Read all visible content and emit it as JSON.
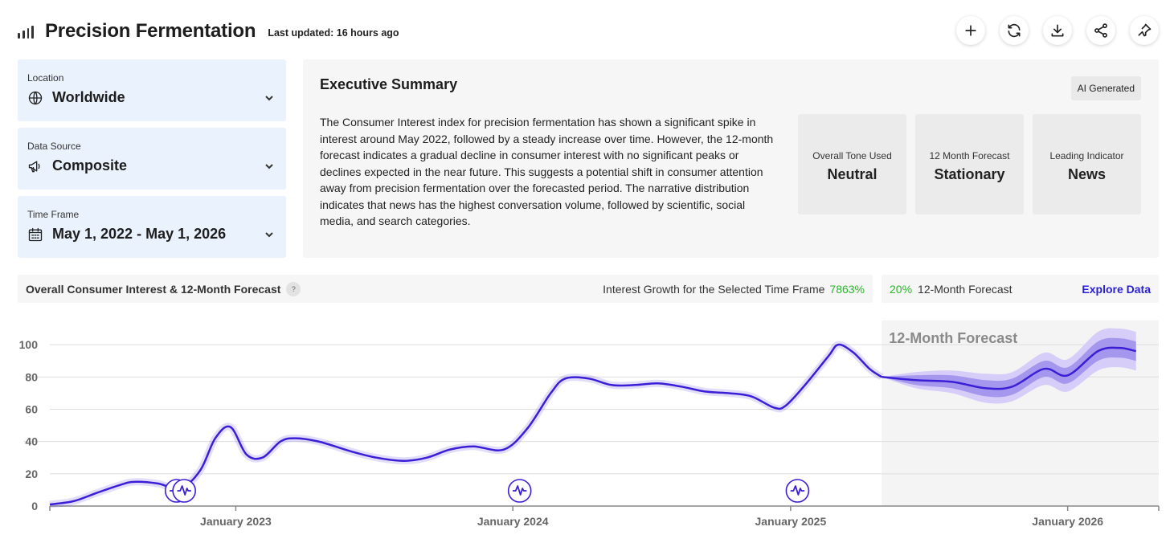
{
  "header": {
    "title": "Precision Fermentation",
    "updated": "Last updated: 16 hours ago",
    "actions": [
      {
        "name": "add-button",
        "icon": "plus-icon"
      },
      {
        "name": "refresh-button",
        "icon": "refresh-icon"
      },
      {
        "name": "download-button",
        "icon": "download-icon"
      },
      {
        "name": "share-button",
        "icon": "share-icon"
      },
      {
        "name": "pin-button",
        "icon": "pin-icon"
      }
    ]
  },
  "filters": {
    "location": {
      "label": "Location",
      "value": "Worldwide",
      "icon": "globe-icon"
    },
    "source": {
      "label": "Data Source",
      "value": "Composite",
      "icon": "megaphone-icon"
    },
    "timeframe": {
      "label": "Time Frame",
      "value": "May 1, 2022 - May 1, 2026",
      "icon": "calendar-icon"
    }
  },
  "summary": {
    "title": "Executive Summary",
    "badge": "AI Generated",
    "text": "The Consumer Interest index for precision fermentation has shown a significant spike in interest around May 2022, followed by a steady increase over time. However, the 12-month forecast indicates a gradual decline in consumer interest with no significant peaks or declines expected in the near future. This suggests a potential shift in consumer attention away from precision fermentation over the forecasted period. The narrative distribution indicates that news has the highest conversation volume, followed by scientific, social media, and search categories.",
    "stats": [
      {
        "label": "Overall Tone Used",
        "value": "Neutral"
      },
      {
        "label": "12 Month Forecast",
        "value": "Stationary"
      },
      {
        "label": "Leading Indicator",
        "value": "News"
      }
    ]
  },
  "chart_header": {
    "title": "Overall Consumer Interest & 12-Month Forecast",
    "help": "?",
    "growth_label": "Interest Growth for the Selected Time Frame",
    "growth_value": "7863%",
    "forecast_pct": "20%",
    "forecast_label": "12-Month Forecast",
    "explore": "Explore Data"
  },
  "colors": {
    "line": "#3a1fd6",
    "band_outer": "#d6cdf8",
    "band_inner": "#a597ee",
    "growth": "#2bb52b",
    "link": "#2a1fd6"
  },
  "chart_data": {
    "type": "line",
    "title": "",
    "forecast_label": "12-Month Forecast",
    "forecast_start": "2025-05-01",
    "x_range": [
      "2022-05-01",
      "2026-05-01"
    ],
    "ylim": [
      0,
      110
    ],
    "yticks": [
      0,
      20,
      40,
      60,
      80,
      100
    ],
    "xticks": [
      "2023-01-01",
      "2024-01-01",
      "2025-01-01",
      "2026-01-01"
    ],
    "xtick_labels": [
      "January 2023",
      "January 2024",
      "January 2025",
      "January 2026"
    ],
    "grid": "horizontal",
    "series": [
      {
        "name": "",
        "points": [
          [
            "2022-05-01",
            1
          ],
          [
            "2022-06-01",
            3
          ],
          [
            "2022-07-01",
            8
          ],
          [
            "2022-08-01",
            13
          ],
          [
            "2022-08-20",
            15
          ],
          [
            "2022-09-20",
            14
          ],
          [
            "2022-10-20",
            11
          ],
          [
            "2022-11-15",
            22
          ],
          [
            "2022-12-05",
            42
          ],
          [
            "2022-12-25",
            49
          ],
          [
            "2023-01-15",
            32
          ],
          [
            "2023-02-05",
            30
          ],
          [
            "2023-03-01",
            40
          ],
          [
            "2023-03-20",
            42
          ],
          [
            "2023-04-20",
            40
          ],
          [
            "2023-06-01",
            34
          ],
          [
            "2023-07-05",
            30
          ],
          [
            "2023-08-10",
            28
          ],
          [
            "2023-09-10",
            30
          ],
          [
            "2023-10-10",
            35
          ],
          [
            "2023-11-10",
            37
          ],
          [
            "2023-12-20",
            35
          ],
          [
            "2024-01-20",
            48
          ],
          [
            "2024-02-20",
            70
          ],
          [
            "2024-03-10",
            79
          ],
          [
            "2024-04-10",
            79
          ],
          [
            "2024-05-10",
            75
          ],
          [
            "2024-06-10",
            75
          ],
          [
            "2024-07-10",
            76
          ],
          [
            "2024-08-10",
            74
          ],
          [
            "2024-09-10",
            71
          ],
          [
            "2024-10-10",
            70
          ],
          [
            "2024-11-10",
            68
          ],
          [
            "2024-12-10",
            61
          ],
          [
            "2024-12-25",
            62
          ],
          [
            "2025-01-20",
            75
          ],
          [
            "2025-02-20",
            93
          ],
          [
            "2025-03-05",
            100
          ],
          [
            "2025-03-25",
            95
          ],
          [
            "2025-04-15",
            85
          ],
          [
            "2025-05-01",
            80
          ]
        ]
      },
      {
        "name": "",
        "forecast": true,
        "points": [
          [
            "2025-05-01",
            80,
            0,
            0
          ],
          [
            "2025-06-15",
            78,
            3,
            5
          ],
          [
            "2025-08-01",
            77,
            4,
            7
          ],
          [
            "2025-09-15",
            73,
            5,
            9
          ],
          [
            "2025-10-20",
            74,
            5,
            9
          ],
          [
            "2025-12-01",
            85,
            5,
            10
          ],
          [
            "2026-01-01",
            81,
            5,
            10
          ],
          [
            "2026-02-10",
            96,
            6,
            12
          ],
          [
            "2026-03-10",
            98,
            6,
            12
          ],
          [
            "2026-04-01",
            96,
            6,
            12
          ]
        ]
      }
    ],
    "markers": [
      "2022-10-15",
      "2022-10-25",
      "2024-01-10",
      "2025-01-10"
    ]
  }
}
